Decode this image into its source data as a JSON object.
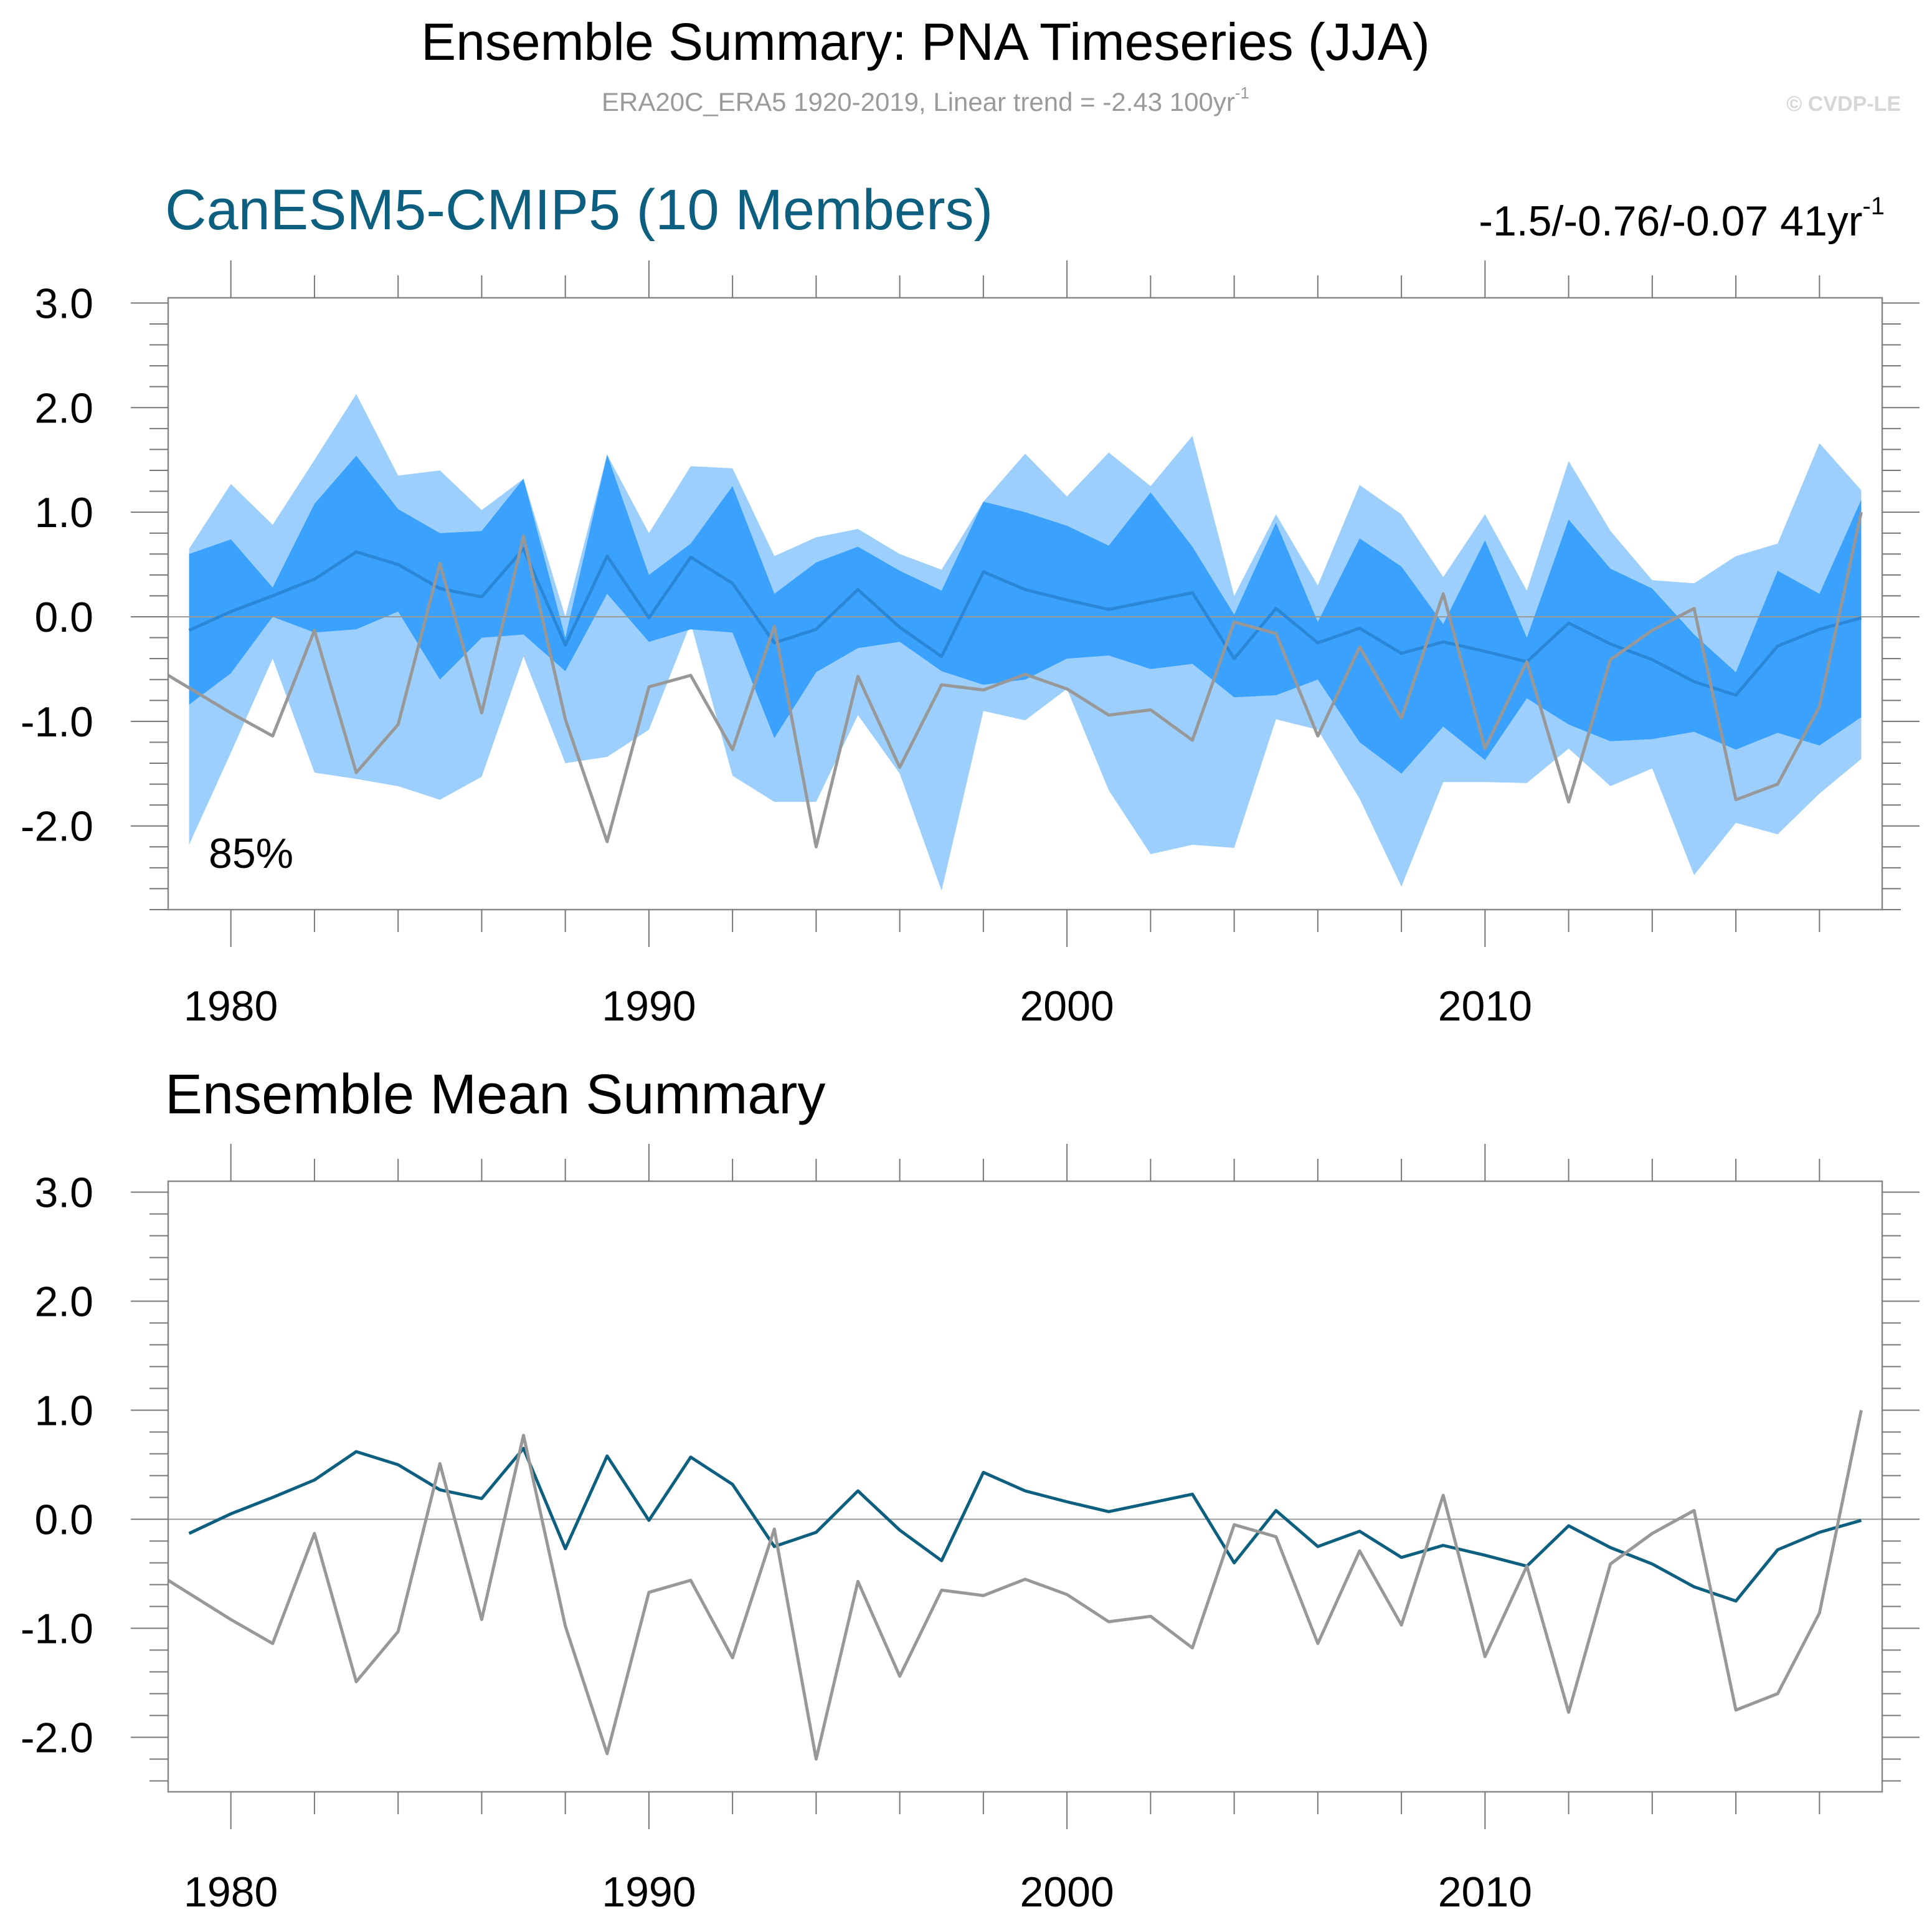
{
  "header": {
    "title": "Ensemble Summary: PNA Timeseries (JJA)",
    "subtitle_main": "ERA20C_ERA5 1920-2019, Linear trend = -2.43 100yr",
    "subtitle_sup": "-1",
    "copyright": "© CVDP-LE"
  },
  "colors": {
    "band_outer": "#9dcffd",
    "band_inner": "#3aa2fd",
    "ens_mean_top": "#2a87d8",
    "ens_mean_bottom": "#0d5f80",
    "observations": "#989898",
    "zero_line": "#9a9a9a",
    "model_title": "#0d5f80"
  },
  "panels": [
    {
      "title": "CanESM5-CMIP5 (10 Members)",
      "trend_text": "-1.5/-0.76/-0.07 41yr",
      "trend_sup": "-1",
      "percent_label": "85%"
    },
    {
      "title": "Ensemble Mean Summary"
    }
  ],
  "chart_data": [
    {
      "type": "area",
      "title": "CanESM5-CMIP5 (10 Members)",
      "annotation": "85%",
      "trend_annotation": "-1.5/-0.76/-0.07 41yr-1",
      "x_tick_labels": [
        "1980",
        "1990",
        "2000",
        "2010"
      ],
      "y_tick_labels": [
        "3.0",
        "2.0",
        "1.0",
        "0.0",
        "-1.0",
        "-2.0"
      ],
      "xlim": [
        1978.5,
        2019.5
      ],
      "ylim": [
        -2.8,
        3.05
      ],
      "grid": false,
      "x": [
        1979,
        1980,
        1981,
        1982,
        1983,
        1984,
        1985,
        1986,
        1987,
        1988,
        1989,
        1990,
        1991,
        1992,
        1993,
        1994,
        1995,
        1996,
        1997,
        1998,
        1999,
        2000,
        2001,
        2002,
        2003,
        2004,
        2005,
        2006,
        2007,
        2008,
        2009,
        2010,
        2011,
        2012,
        2013,
        2014,
        2015,
        2016,
        2017,
        2018,
        2019
      ],
      "series": [
        {
          "name": "ensemble max",
          "role": "outer_upper",
          "values": [
            0.65,
            1.27,
            0.88,
            1.5,
            2.13,
            1.35,
            1.4,
            1.02,
            1.32,
            0.0,
            1.55,
            0.8,
            1.44,
            1.42,
            0.58,
            0.76,
            0.84,
            0.6,
            0.45,
            1.1,
            1.56,
            1.15,
            1.57,
            1.25,
            1.73,
            0.2,
            0.98,
            0.3,
            1.26,
            0.98,
            0.38,
            0.98,
            0.25,
            1.49,
            0.82,
            0.35,
            0.32,
            0.58,
            0.7,
            1.66,
            1.21
          ]
        },
        {
          "name": "upper inner percentile",
          "role": "inner_upper",
          "values": [
            0.6,
            0.74,
            0.28,
            1.08,
            1.54,
            1.03,
            0.8,
            0.82,
            1.32,
            -0.2,
            1.55,
            0.4,
            0.7,
            1.25,
            0.22,
            0.52,
            0.67,
            0.44,
            0.25,
            1.1,
            1.0,
            0.87,
            0.68,
            1.19,
            0.67,
            0.02,
            0.9,
            -0.05,
            0.75,
            0.48,
            -0.07,
            0.73,
            -0.2,
            0.93,
            0.46,
            0.27,
            -0.17,
            -0.53,
            0.44,
            0.22,
            1.12
          ]
        },
        {
          "name": "ensemble mean",
          "role": "mean",
          "values": [
            -0.13,
            0.05,
            0.2,
            0.36,
            0.62,
            0.5,
            0.27,
            0.19,
            0.65,
            -0.27,
            0.58,
            -0.01,
            0.57,
            0.32,
            -0.25,
            -0.12,
            0.26,
            -0.1,
            -0.38,
            0.43,
            0.26,
            0.16,
            0.07,
            0.15,
            0.23,
            -0.4,
            0.08,
            -0.25,
            -0.11,
            -0.35,
            -0.24,
            -0.33,
            -0.43,
            -0.06,
            -0.26,
            -0.41,
            -0.62,
            -0.75,
            -0.28,
            -0.12,
            -0.01
          ]
        },
        {
          "name": "lower inner percentile",
          "role": "inner_lower",
          "values": [
            -0.84,
            -0.54,
            0.0,
            -0.15,
            -0.12,
            0.05,
            -0.6,
            -0.2,
            -0.17,
            -0.52,
            0.22,
            -0.24,
            -0.12,
            -0.15,
            -1.16,
            -0.53,
            -0.3,
            -0.24,
            -0.52,
            -0.65,
            -0.6,
            -0.4,
            -0.37,
            -0.5,
            -0.45,
            -0.77,
            -0.75,
            -0.6,
            -1.2,
            -1.5,
            -1.05,
            -1.37,
            -0.78,
            -1.03,
            -1.19,
            -1.17,
            -1.1,
            -1.27,
            -1.11,
            -1.23,
            -0.96
          ]
        },
        {
          "name": "ensemble min",
          "role": "outer_lower",
          "values": [
            -2.18,
            -1.3,
            -0.4,
            -1.49,
            -1.55,
            -1.62,
            -1.75,
            -1.53,
            -0.38,
            -1.4,
            -1.34,
            -1.08,
            -0.06,
            -1.52,
            -1.77,
            -1.77,
            -0.94,
            -1.5,
            -2.62,
            -0.9,
            -0.99,
            -0.69,
            -1.66,
            -2.27,
            -2.18,
            -2.21,
            -0.98,
            -1.08,
            -1.74,
            -2.58,
            -1.58,
            -1.58,
            -1.59,
            -1.26,
            -1.62,
            -1.45,
            -2.47,
            -1.97,
            -2.08,
            -1.69,
            -1.36
          ]
        },
        {
          "name": "observations (ERA20C_ERA5)",
          "role": "obs",
          "x": [
            1978,
            1979,
            1980,
            1981,
            1982,
            1983,
            1984,
            1985,
            1986,
            1987,
            1988,
            1989,
            1990,
            1991,
            1992,
            1993,
            1994,
            1995,
            1996,
            1997,
            1998,
            1999,
            2000,
            2001,
            2002,
            2003,
            2004,
            2005,
            2006,
            2007,
            2008,
            2009,
            2010,
            2011,
            2012,
            2013,
            2014,
            2015,
            2016,
            2017,
            2018,
            2019
          ],
          "values": [
            -0.44,
            -0.68,
            -0.92,
            -1.14,
            -0.13,
            -1.49,
            -1.03,
            0.51,
            -0.92,
            0.77,
            -0.98,
            -2.15,
            -0.67,
            -0.56,
            -1.27,
            -0.09,
            -2.2,
            -0.57,
            -1.44,
            -0.65,
            -0.7,
            -0.55,
            -0.69,
            -0.94,
            -0.89,
            -1.18,
            -0.05,
            -0.16,
            -1.14,
            -0.29,
            -0.97,
            0.22,
            -1.26,
            -0.43,
            -1.77,
            -0.41,
            -0.13,
            0.08,
            -1.75,
            -1.6,
            -0.86,
            1.0
          ]
        }
      ]
    },
    {
      "type": "line",
      "title": "Ensemble Mean Summary",
      "x_tick_labels": [
        "1980",
        "1990",
        "2000",
        "2010"
      ],
      "y_tick_labels": [
        "3.0",
        "2.0",
        "1.0",
        "0.0",
        "-1.0",
        "-2.0"
      ],
      "xlim": [
        1978.5,
        2019.5
      ],
      "ylim": [
        -2.5,
        3.1
      ],
      "grid": false,
      "x": [
        1979,
        1980,
        1981,
        1982,
        1983,
        1984,
        1985,
        1986,
        1987,
        1988,
        1989,
        1990,
        1991,
        1992,
        1993,
        1994,
        1995,
        1996,
        1997,
        1998,
        1999,
        2000,
        2001,
        2002,
        2003,
        2004,
        2005,
        2006,
        2007,
        2008,
        2009,
        2010,
        2011,
        2012,
        2013,
        2014,
        2015,
        2016,
        2017,
        2018,
        2019
      ],
      "series": [
        {
          "name": "ensemble mean",
          "role": "mean",
          "values": [
            -0.13,
            0.05,
            0.2,
            0.36,
            0.62,
            0.5,
            0.27,
            0.19,
            0.65,
            -0.27,
            0.58,
            -0.01,
            0.57,
            0.32,
            -0.25,
            -0.12,
            0.26,
            -0.1,
            -0.38,
            0.43,
            0.26,
            0.16,
            0.07,
            0.15,
            0.23,
            -0.4,
            0.08,
            -0.25,
            -0.11,
            -0.35,
            -0.24,
            -0.33,
            -0.43,
            -0.06,
            -0.26,
            -0.41,
            -0.62,
            -0.75,
            -0.28,
            -0.12,
            -0.01
          ]
        },
        {
          "name": "observations (ERA20C_ERA5)",
          "role": "obs",
          "x": [
            1978,
            1979,
            1980,
            1981,
            1982,
            1983,
            1984,
            1985,
            1986,
            1987,
            1988,
            1989,
            1990,
            1991,
            1992,
            1993,
            1994,
            1995,
            1996,
            1997,
            1998,
            1999,
            2000,
            2001,
            2002,
            2003,
            2004,
            2005,
            2006,
            2007,
            2008,
            2009,
            2010,
            2011,
            2012,
            2013,
            2014,
            2015,
            2016,
            2017,
            2018,
            2019
          ],
          "values": [
            -0.44,
            -0.68,
            -0.92,
            -1.14,
            -0.13,
            -1.49,
            -1.03,
            0.51,
            -0.92,
            0.77,
            -0.98,
            -2.15,
            -0.67,
            -0.56,
            -1.27,
            -0.09,
            -2.2,
            -0.57,
            -1.44,
            -0.65,
            -0.7,
            -0.55,
            -0.69,
            -0.94,
            -0.89,
            -1.18,
            -0.05,
            -0.16,
            -1.14,
            -0.29,
            -0.97,
            0.22,
            -1.26,
            -0.43,
            -1.77,
            -0.41,
            -0.13,
            0.08,
            -1.75,
            -1.6,
            -0.86,
            1.0
          ]
        }
      ]
    }
  ]
}
